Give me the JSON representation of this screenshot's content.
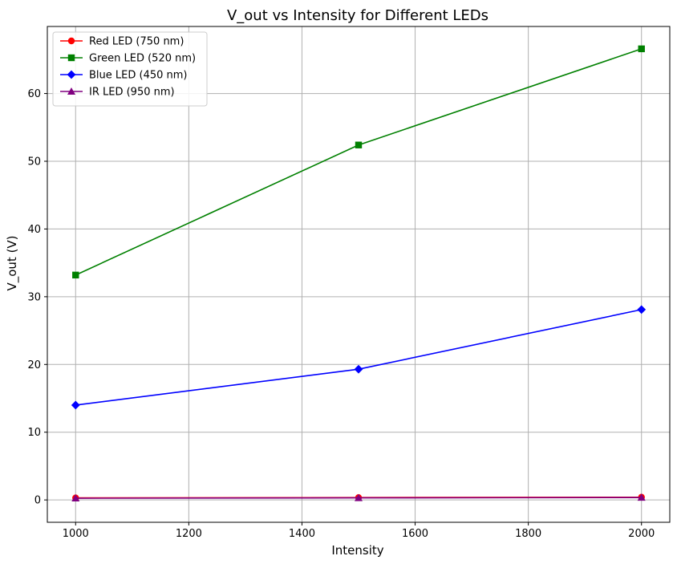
{
  "chart_data": {
    "type": "line",
    "title": "V_out vs Intensity for Different LEDs",
    "xlabel": "Intensity",
    "ylabel": "V_out (V)",
    "x": [
      1000,
      1500,
      2000
    ],
    "xlim": [
      950,
      2050
    ],
    "ylim": [
      -3.3,
      69.9
    ],
    "xticks": [
      1000,
      1200,
      1400,
      1600,
      1800,
      2000
    ],
    "yticks": [
      0,
      10,
      20,
      30,
      40,
      50,
      60
    ],
    "grid": true,
    "legend_position": "top-left",
    "series": [
      {
        "name": "Red LED (750 nm)",
        "color": "#ff0000",
        "marker": "circle",
        "values": [
          0.3,
          0.35,
          0.4
        ]
      },
      {
        "name": "Green LED (520 nm)",
        "color": "#008000",
        "marker": "square",
        "values": [
          33.2,
          52.4,
          66.6
        ]
      },
      {
        "name": "Blue LED (450 nm)",
        "color": "#0000ff",
        "marker": "diamond",
        "values": [
          14.0,
          19.3,
          28.1
        ]
      },
      {
        "name": "IR LED (950 nm)",
        "color": "#800080",
        "marker": "triangle",
        "values": [
          0.25,
          0.3,
          0.35
        ]
      }
    ]
  }
}
